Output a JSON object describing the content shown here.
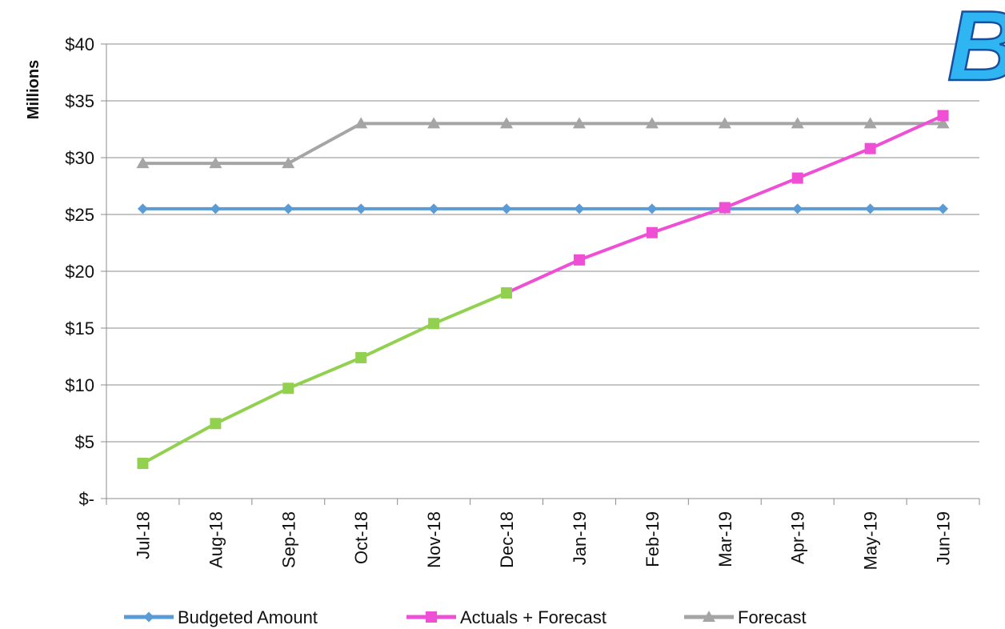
{
  "chart_data": {
    "type": "line",
    "title": "",
    "xlabel": "",
    "ylabel": "Millions",
    "ylim": [
      0,
      40
    ],
    "y_ticks": [
      0,
      5,
      10,
      15,
      20,
      25,
      30,
      35,
      40
    ],
    "y_tick_labels": [
      "$-",
      "$5",
      "$10",
      "$15",
      "$20",
      "$25",
      "$30",
      "$35",
      "$40"
    ],
    "categories": [
      "Jul-18",
      "Aug-18",
      "Sep-18",
      "Oct-18",
      "Nov-18",
      "Dec-18",
      "Jan-19",
      "Feb-19",
      "Mar-19",
      "Apr-19",
      "May-19",
      "Jun-19"
    ],
    "series": [
      {
        "name": "Budgeted Amount",
        "color": "#5b9bd5",
        "marker": "diamond",
        "values": [
          25.5,
          25.5,
          25.5,
          25.5,
          25.5,
          25.5,
          25.5,
          25.5,
          25.5,
          25.5,
          25.5,
          25.5
        ]
      },
      {
        "name": "Actuals + Forecast",
        "color": "#ee4fd4",
        "actuals_color": "#92d050",
        "actuals_through_index": 5,
        "marker": "square",
        "values": [
          3.1,
          6.6,
          9.7,
          12.4,
          15.4,
          18.1,
          21.0,
          23.4,
          25.6,
          28.2,
          30.8,
          33.7
        ]
      },
      {
        "name": "Forecast",
        "color": "#a5a5a5",
        "marker": "triangle",
        "values": [
          29.5,
          29.5,
          29.5,
          33.0,
          33.0,
          33.0,
          33.0,
          33.0,
          33.0,
          33.0,
          33.0,
          33.0
        ]
      }
    ],
    "grid": true,
    "legend_position": "bottom",
    "corner_mark": "B",
    "corner_mark_colors": {
      "fill": "#2fb6f2",
      "stroke": "#1a4d9e"
    }
  }
}
